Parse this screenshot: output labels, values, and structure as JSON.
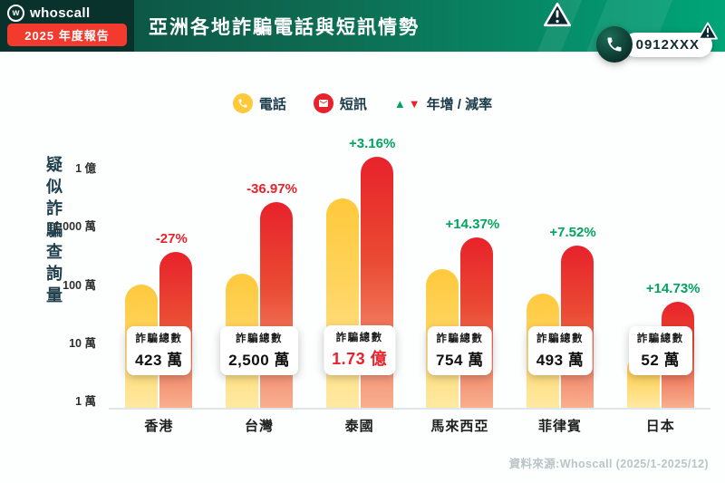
{
  "header": {
    "logo_mark": "w",
    "logo_text": "whoscall",
    "report_badge": "2025 年度報告",
    "title": "亞洲各地詐騙電話與短訊情勢",
    "phone_bubble": "0912XXX"
  },
  "legend": {
    "phone_label": "電話",
    "sms_label": "短訊",
    "yoy_label": "年增 / 減率",
    "up_symbol": "▲",
    "down_symbol": "▼"
  },
  "chart_data": {
    "type": "bar",
    "subtype": "grouped",
    "scale": "log",
    "title": "亞洲各地詐騙電話與短訊情勢",
    "ylabel": "疑似詐騙查詢量",
    "xlabel": "",
    "ylim": [
      10000,
      200000000
    ],
    "grid": false,
    "y_ticks": [
      {
        "label": "1 億",
        "value": 100000000
      },
      {
        "label": "1,000 萬",
        "value": 10000000
      },
      {
        "label": "100 萬",
        "value": 1000000
      },
      {
        "label": "10 萬",
        "value": 100000
      },
      {
        "label": "1 萬",
        "value": 10000
      }
    ],
    "categories": [
      "香港",
      "台灣",
      "泰國",
      "馬來西亞",
      "菲律賓",
      "日本"
    ],
    "series": [
      {
        "name": "電話",
        "color": "#FFC93C",
        "values": [
          900000,
          1400000,
          28000000,
          1700000,
          650000,
          60000
        ]
      },
      {
        "name": "短訊",
        "color": "#E8222B",
        "values": [
          3330000,
          23600000,
          145000000,
          5840000,
          4280000,
          460000
        ]
      }
    ],
    "totals": [
      {
        "label": "詐騙總數",
        "value": "423 萬",
        "highlight": false
      },
      {
        "label": "詐騙總數",
        "value": "2,500 萬",
        "highlight": false
      },
      {
        "label": "詐騙總數",
        "value": "1.73 億",
        "highlight": true
      },
      {
        "label": "詐騙總數",
        "value": "754 萬",
        "highlight": false
      },
      {
        "label": "詐騙總數",
        "value": "493 萬",
        "highlight": false
      },
      {
        "label": "詐騙總數",
        "value": "52 萬",
        "highlight": false
      }
    ],
    "yoy": [
      {
        "text": "-27%",
        "direction": "down"
      },
      {
        "text": "-36.97%",
        "direction": "down"
      },
      {
        "text": "+3.16%",
        "direction": "up"
      },
      {
        "text": "+14.37%",
        "direction": "up"
      },
      {
        "text": "+7.52%",
        "direction": "up"
      },
      {
        "text": "+14.73%",
        "direction": "up"
      }
    ]
  },
  "colors": {
    "phone_bar": "#FFC93C",
    "sms_bar": "#E8222B",
    "positive": "#00A45E",
    "negative": "#E8222B",
    "header_gradient_start": "#0C4A3E",
    "header_gradient_end": "#00A578",
    "badge_red": "#F23A2E"
  },
  "footer": {
    "source": "資料來源:Whoscall (2025/1-2025/12)"
  }
}
